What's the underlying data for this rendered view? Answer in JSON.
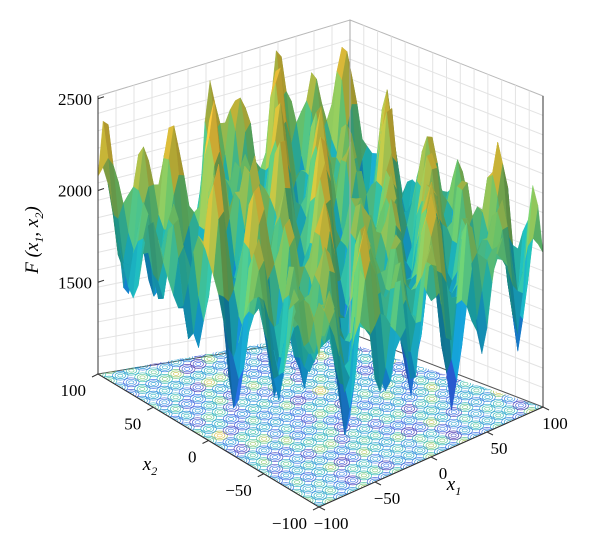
{
  "chart_data": {
    "type": "surface3d",
    "title": "",
    "x_label": {
      "main": "x",
      "sub": "1"
    },
    "y_label": {
      "main": "x",
      "sub": "2"
    },
    "z_label": {
      "pre": "F (",
      "x": "x",
      "x_sub": "1",
      "sep": ", ",
      "y": "x",
      "y_sub": "2",
      "post": ")"
    },
    "x_ticks": [
      "−100",
      "−50",
      "0",
      "50",
      "100"
    ],
    "y_ticks": [
      "−100",
      "−50",
      "0",
      "50",
      "100"
    ],
    "z_ticks": [
      "1500",
      "2000",
      "2500"
    ],
    "xlim": [
      -100,
      100
    ],
    "ylim": [
      -100,
      100
    ],
    "zlim": [
      1000,
      2700
    ],
    "z_range_observed": [
      1050,
      2650
    ],
    "grid": true,
    "contour_projection": true,
    "colormap": [
      "#3e26a8",
      "#2f60e7",
      "#1190d3",
      "#1eb5b2",
      "#6bc66b",
      "#cdbb39",
      "#f6c03a",
      "#f9e524"
    ]
  }
}
